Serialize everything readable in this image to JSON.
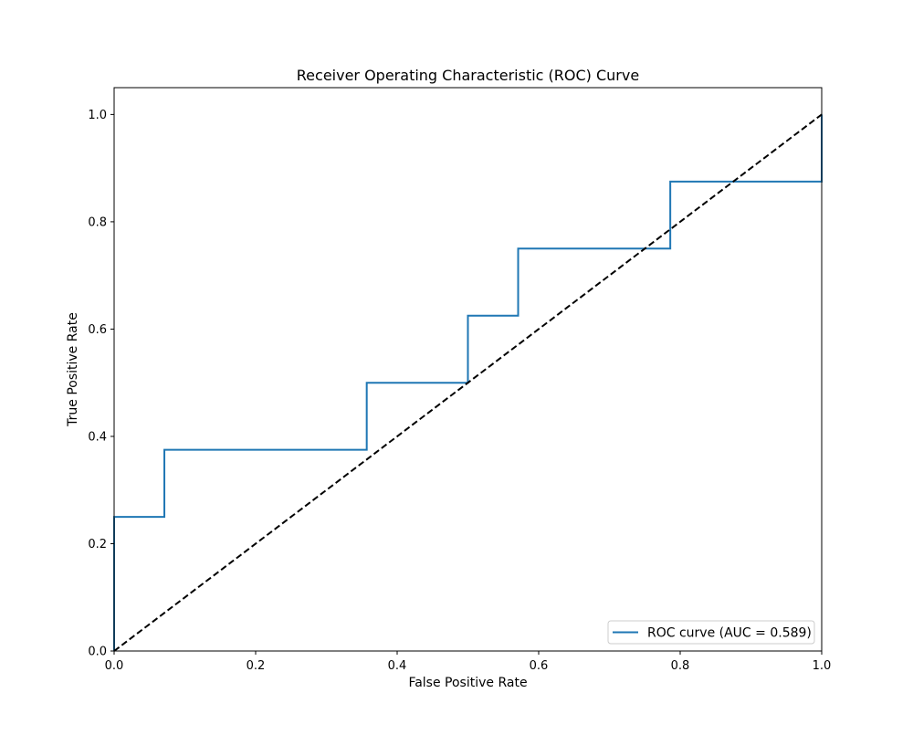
{
  "chart_data": {
    "type": "line",
    "title": "Receiver Operating Characteristic (ROC) Curve",
    "xlabel": "False Positive Rate",
    "ylabel": "True Positive Rate",
    "xlim": [
      0.0,
      1.0
    ],
    "ylim": [
      0.0,
      1.05
    ],
    "grid": false,
    "legend_position": "lower-right",
    "x_ticks": [
      0.0,
      0.2,
      0.4,
      0.6,
      0.8,
      1.0
    ],
    "x_tick_labels": [
      "0.0",
      "0.2",
      "0.4",
      "0.6",
      "0.8",
      "1.0"
    ],
    "y_ticks": [
      0.0,
      0.2,
      0.4,
      0.6,
      0.8,
      1.0
    ],
    "y_tick_labels": [
      "0.0",
      "0.2",
      "0.4",
      "0.6",
      "0.8",
      "1.0"
    ],
    "series": [
      {
        "name": "ROC curve (AUC = 0.589)",
        "color": "#1f77b4",
        "style": "solid",
        "step": true,
        "x": [
          0.0,
          0.0,
          0.071,
          0.071,
          0.357,
          0.357,
          0.5,
          0.5,
          0.571,
          0.571,
          0.786,
          0.786,
          1.0,
          1.0
        ],
        "y": [
          0.0,
          0.25,
          0.25,
          0.375,
          0.375,
          0.5,
          0.5,
          0.625,
          0.625,
          0.75,
          0.75,
          0.875,
          0.875,
          1.0
        ]
      },
      {
        "color": "#000000",
        "style": "dashed",
        "x": [
          0.0,
          1.0
        ],
        "y": [
          0.0,
          1.0
        ]
      }
    ]
  }
}
